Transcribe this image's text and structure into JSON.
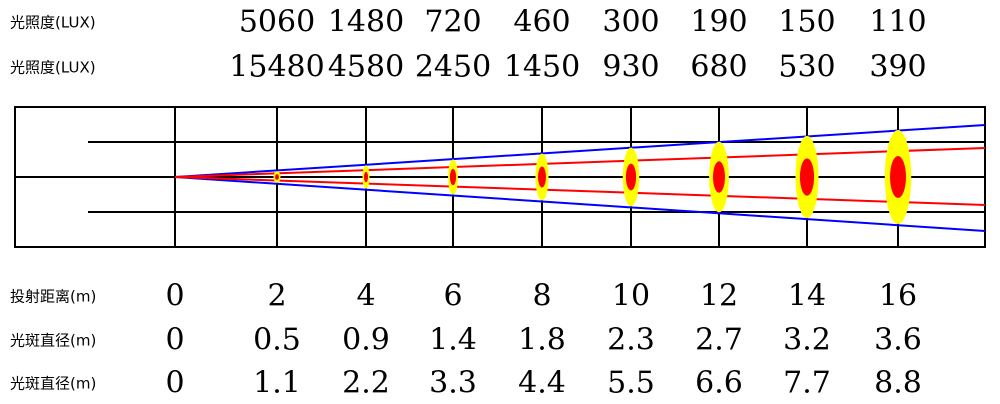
{
  "colors": {
    "outer_beam": "#0000ff",
    "inner_beam": "#ff0000",
    "spot_outer": "#ffff00",
    "spot_inner": "#ff0000",
    "grid": "#000000"
  },
  "chart_data": {
    "type": "table",
    "distance_label": "投射距离(m)",
    "distances": [
      "0",
      "2",
      "4",
      "6",
      "8",
      "10",
      "12",
      "14",
      "16"
    ],
    "lux_rows": [
      {
        "label": "光照度(LUX)",
        "values": [
          "5060",
          "1480",
          "720",
          "460",
          "300",
          "190",
          "150",
          "110"
        ]
      },
      {
        "label": "光照度(LUX)",
        "values": [
          "15480",
          "4580",
          "2450",
          "1450",
          "930",
          "680",
          "530",
          "390"
        ]
      }
    ],
    "diameter_rows": [
      {
        "label": "光斑直径(m)",
        "values": [
          "0",
          "0.5",
          "0.9",
          "1.4",
          "1.8",
          "2.3",
          "2.7",
          "3.2",
          "3.6"
        ]
      },
      {
        "label": "光斑直径(m)",
        "values": [
          "0",
          "1.1",
          "2.2",
          "3.3",
          "4.4",
          "5.5",
          "6.6",
          "7.7",
          "8.8"
        ]
      }
    ]
  }
}
